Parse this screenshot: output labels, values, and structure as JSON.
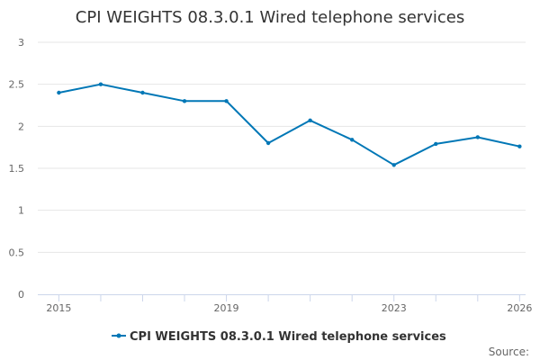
{
  "chart_data": {
    "type": "line",
    "title": "CPI WEIGHTS 08.3.0.1 Wired telephone services",
    "xlabel": "",
    "ylabel": "",
    "ylim": [
      0,
      3
    ],
    "yticks": [
      "0",
      "0.5",
      "1",
      "1.5",
      "2",
      "2.5",
      "3"
    ],
    "xlim": [
      2015,
      2026
    ],
    "xticks": [
      "2015",
      "2019",
      "2023",
      "2026"
    ],
    "grid": true,
    "legend": "bottom-center",
    "series": [
      {
        "name": "CPI WEIGHTS 08.3.0.1 Wired telephone services",
        "color": "#0077b6",
        "x": [
          2015,
          2016,
          2017,
          2018,
          2019,
          2020,
          2021,
          2022,
          2023,
          2024,
          2025,
          2026
        ],
        "values": [
          2.4,
          2.5,
          2.4,
          2.3,
          2.3,
          1.8,
          2.07,
          1.84,
          1.54,
          1.79,
          1.87,
          1.76
        ]
      }
    ],
    "source_label": "Source:"
  }
}
